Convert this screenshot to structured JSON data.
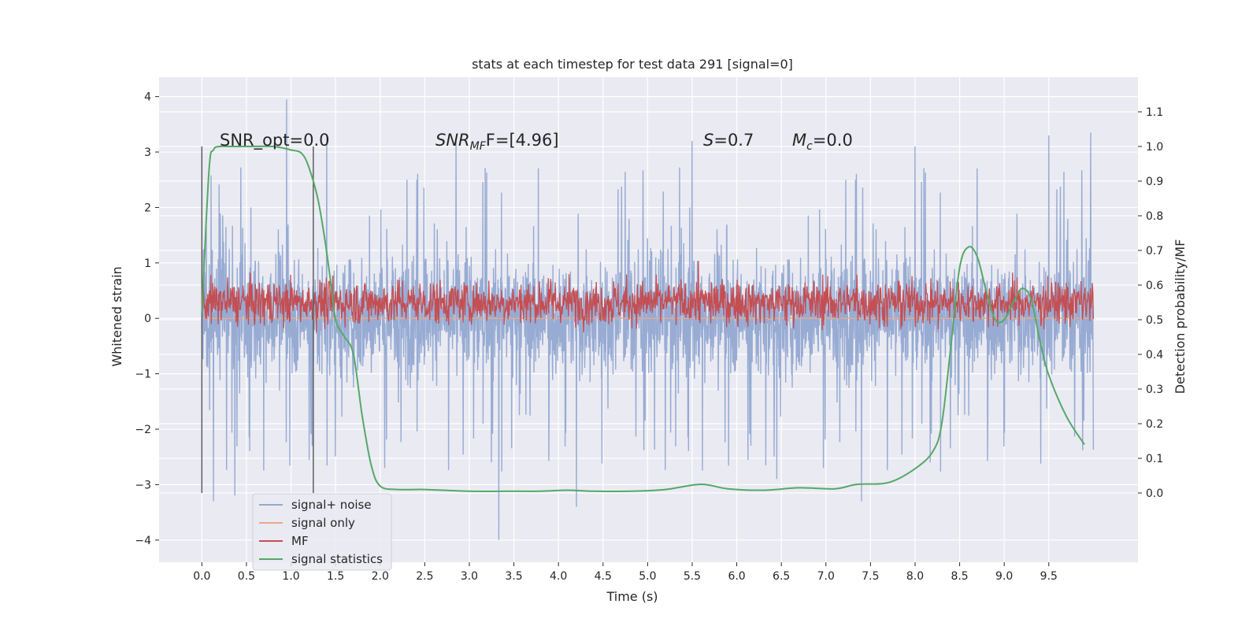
{
  "chart_data": {
    "type": "line",
    "title": "stats at each timestep for test data 291 [signal=0]",
    "xlabel": "Time (s)",
    "ylabel": "Whitened strain",
    "ylabel_right": "Detection probability/MF",
    "xlim": [
      -0.48,
      10.5
    ],
    "ylim": [
      -4.4,
      4.35
    ],
    "ylim_right": [
      -0.2,
      1.2
    ],
    "x_ticks": [
      0.0,
      0.5,
      1.0,
      1.5,
      2.0,
      2.5,
      3.0,
      3.5,
      4.0,
      4.5,
      5.0,
      5.5,
      6.0,
      6.5,
      7.0,
      7.5,
      8.0,
      8.5,
      9.0,
      9.5
    ],
    "x_tick_labels": [
      "0.0",
      "0.5",
      "1.0",
      "1.5",
      "2.0",
      "2.5",
      "3.0",
      "3.5",
      "4.0",
      "4.5",
      "5.0",
      "5.5",
      "6.0",
      "6.5",
      "7.0",
      "7.5",
      "8.0",
      "8.5",
      "9.0",
      "9.5"
    ],
    "y_ticks": [
      -4,
      -3,
      -2,
      -1,
      0,
      1,
      2,
      3,
      4
    ],
    "y_tick_labels": [
      "−4",
      "−3",
      "−2",
      "−1",
      "0",
      "1",
      "2",
      "3",
      "4"
    ],
    "y_right_ticks": [
      0.0,
      0.1,
      0.2,
      0.3,
      0.4,
      0.5,
      0.6,
      0.7,
      0.8,
      0.9,
      1.0,
      1.1
    ],
    "y_right_tick_labels": [
      "0.0",
      "0.1",
      "0.2",
      "0.3",
      "0.4",
      "0.5",
      "0.6",
      "0.7",
      "0.8",
      "0.9",
      "1.0",
      "1.1"
    ],
    "grid": true,
    "legend_position": "lower-left",
    "annotations": {
      "snr_opt": "SNR_opt=0.0",
      "snr_mf_prefix": "SNR",
      "snr_mf_sub": "MF",
      "snr_mf_value": "F=[4.96]",
      "s_prefix": "S",
      "s_value": "=0.7",
      "mc_prefix": "M",
      "mc_sub": "c",
      "mc_value": "=0.0"
    },
    "vertical_markers": [
      {
        "x": 0.0,
        "ymin": -3.15,
        "ymax": 3.1
      },
      {
        "x": 1.25,
        "ymin": -3.15,
        "ymax": 3.1
      }
    ],
    "series": [
      {
        "name": "signal+ noise",
        "color": "#92a8d1",
        "axis": "left",
        "style": "noise band",
        "x_range": [
          0.0,
          10.0
        ],
        "typical_band": [
          -1.3,
          1.2
        ],
        "spikes": [
          [
            0.13,
            -3.3
          ],
          [
            0.37,
            -3.2
          ],
          [
            0.95,
            3.95
          ],
          [
            1.4,
            3.3
          ],
          [
            2.85,
            3.2
          ],
          [
            3.33,
            -4.0
          ],
          [
            4.2,
            -3.4
          ],
          [
            5.5,
            3.2
          ],
          [
            6.45,
            -2.9
          ],
          [
            7.4,
            -3.3
          ],
          [
            8.0,
            3.1
          ],
          [
            9.5,
            3.3
          ],
          [
            9.97,
            3.35
          ]
        ]
      },
      {
        "name": "signal only",
        "color": "#e8a88e",
        "axis": "left",
        "x": [
          0.0,
          10.0
        ],
        "y": [
          0.0,
          0.0
        ]
      },
      {
        "name": "MF",
        "color": "#c44e52",
        "axis": "right",
        "style": "noise band",
        "x_range": [
          0.0,
          10.0
        ],
        "typical_band": [
          0.5,
          0.6
        ],
        "spikes": [
          [
            5.57,
            0.67
          ],
          [
            7.35,
            0.63
          ]
        ]
      },
      {
        "name": "signal statistics",
        "color": "#55a868",
        "axis": "right",
        "x": [
          0.0,
          0.08,
          0.13,
          0.2,
          0.3,
          0.5,
          0.8,
          1.0,
          1.12,
          1.2,
          1.3,
          1.38,
          1.45,
          1.5,
          1.55,
          1.6,
          1.7,
          1.8,
          1.9,
          2.0,
          2.2,
          2.5,
          3.0,
          3.5,
          3.8,
          4.1,
          4.4,
          4.8,
          5.2,
          5.6,
          5.9,
          6.3,
          6.7,
          7.1,
          7.35,
          7.7,
          8.0,
          8.2,
          8.3,
          8.4,
          8.5,
          8.6,
          8.7,
          8.8,
          8.9,
          9.0,
          9.1,
          9.2,
          9.3,
          9.4,
          9.5,
          9.7,
          9.9
        ],
        "y": [
          0.52,
          0.93,
          0.99,
          1.0,
          1.0,
          1.0,
          1.0,
          0.99,
          0.98,
          0.94,
          0.85,
          0.73,
          0.6,
          0.5,
          0.47,
          0.45,
          0.4,
          0.22,
          0.08,
          0.02,
          0.01,
          0.01,
          0.005,
          0.005,
          0.005,
          0.008,
          0.005,
          0.005,
          0.01,
          0.025,
          0.012,
          0.008,
          0.015,
          0.012,
          0.025,
          0.03,
          0.07,
          0.12,
          0.2,
          0.42,
          0.65,
          0.71,
          0.68,
          0.58,
          0.5,
          0.5,
          0.55,
          0.59,
          0.56,
          0.44,
          0.34,
          0.22,
          0.14
        ]
      }
    ]
  }
}
